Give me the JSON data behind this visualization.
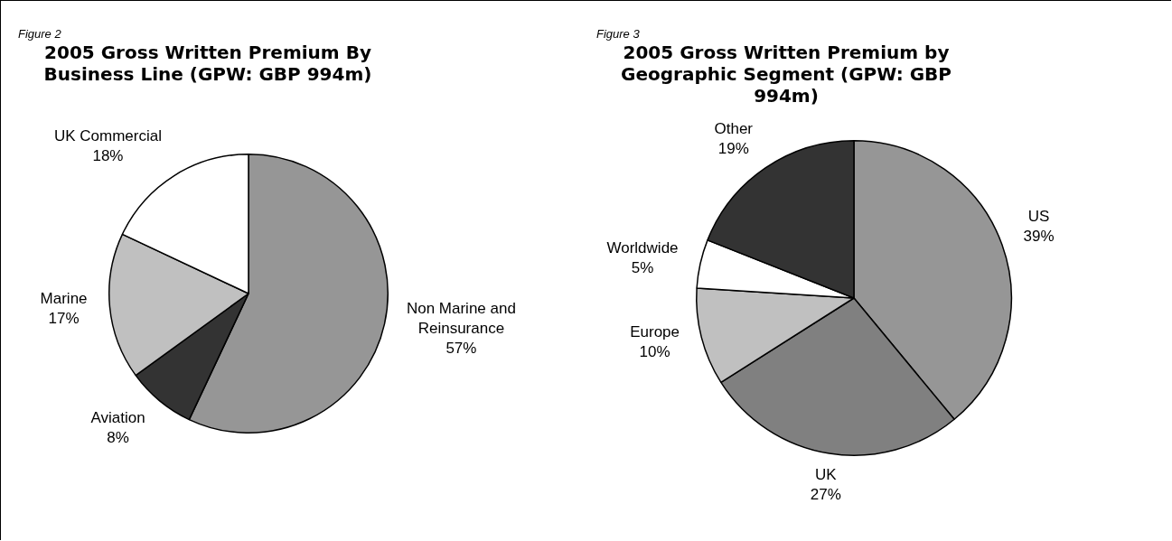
{
  "chart_data": [
    {
      "type": "pie",
      "title": "2005 Gross Written Premium By Business Line (GPW: GBP 994m)",
      "annotations": [
        "Figure 2"
      ],
      "categories": [
        "Non Marine and Reinsurance",
        "Aviation",
        "Marine",
        "UK Commercial"
      ],
      "values": [
        57,
        8,
        17,
        18
      ],
      "value_labels": [
        "57%",
        "8%",
        "17%",
        "18%"
      ],
      "colors": [
        "#969696",
        "#333333",
        "#c0c0c0",
        "#ffffff"
      ],
      "legend": false
    },
    {
      "type": "pie",
      "title": "2005 Gross Written Premium by Geographic Segment (GPW: GBP 994m)",
      "annotations": [
        "Figure 3"
      ],
      "categories": [
        "US",
        "UK",
        "Europe",
        "Worldwide",
        "Other"
      ],
      "values": [
        39,
        27,
        10,
        5,
        19
      ],
      "value_labels": [
        "39%",
        "27%",
        "10%",
        "5%",
        "19%"
      ],
      "colors": [
        "#969696",
        "#808080",
        "#c0c0c0",
        "#ffffff",
        "#333333"
      ],
      "legend": false
    }
  ]
}
